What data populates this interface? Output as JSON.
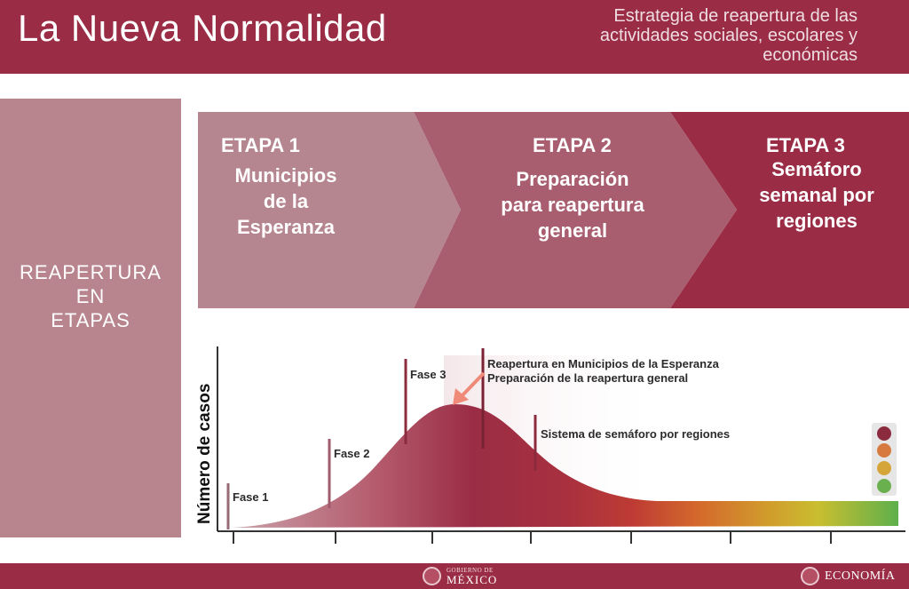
{
  "header": {
    "title": "La Nueva Normalidad",
    "subtitle_line1": "Estrategia de reapertura de las",
    "subtitle_line2": "actividades sociales, escolares y",
    "subtitle_line3": "económicas"
  },
  "side_panel": {
    "line1": "REAPERTURA",
    "line2": "EN",
    "line3": "ETAPAS"
  },
  "stages": [
    {
      "title": "ETAPA 1",
      "desc1": "Municipios",
      "desc2": "de la",
      "desc3": "Esperanza",
      "color": "#b5868f"
    },
    {
      "title": "ETAPA 2",
      "desc1": "Preparación",
      "desc2": "para reapertura",
      "desc3": "general",
      "color": "#a85e6f"
    },
    {
      "title": "ETAPA 3",
      "desc1": "Semáforo",
      "desc2": "semanal por",
      "desc3": "regiones",
      "color": "#9a2d45"
    }
  ],
  "chart": {
    "ylabel": "Número de casos",
    "phases": [
      "Fase 1",
      "Fase 2",
      "Fase 3"
    ],
    "annotation_reopen": "Reapertura en Municipios de la Esperanza",
    "annotation_prep": "Preparación de la reapertura general",
    "annotation_semaforo": "Sistema de semáforo por regiones",
    "traffic_light_colors": [
      "#8c2b3e",
      "#d77a3f",
      "#d5a53a",
      "#6bb04e"
    ]
  },
  "footer": {
    "gov_small": "GOBIERNO DE",
    "gov_big": "MÉXICO",
    "economia": "ECONOMÍA"
  },
  "colors": {
    "brand": "#9a2d45",
    "side_panel": "#b8858f",
    "arrow": "#f08a78"
  }
}
